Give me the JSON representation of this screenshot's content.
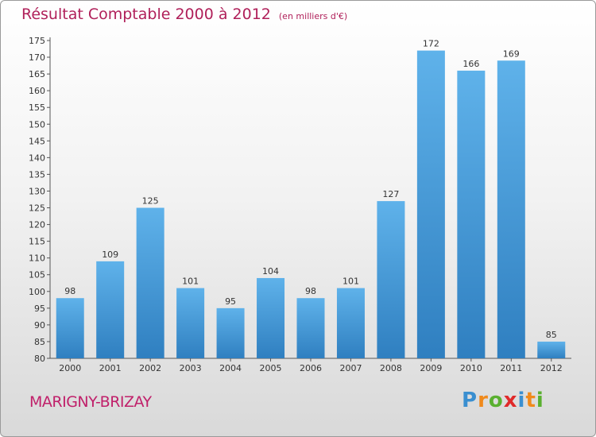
{
  "header": {
    "title": "Résultat Comptable 2000 à 2012",
    "subtitle": "(en milliers d'€)"
  },
  "footer": {
    "commune": "MARIGNY-BRIZAY",
    "logo_letters": [
      {
        "ch": "P",
        "color": "#3a8fd0"
      },
      {
        "ch": "r",
        "color": "#f08a1c"
      },
      {
        "ch": "o",
        "color": "#5ab030"
      },
      {
        "ch": "x",
        "color": "#e02a2a"
      },
      {
        "ch": "i",
        "color": "#3a8fd0"
      },
      {
        "ch": "t",
        "color": "#f08a1c"
      },
      {
        "ch": "i",
        "color": "#5ab030"
      }
    ]
  },
  "chart_data": {
    "type": "bar",
    "title": "Résultat Comptable 2000 à 2012",
    "subtitle": "(en milliers d'€)",
    "xlabel": "",
    "ylabel": "",
    "categories": [
      "2000",
      "2001",
      "2002",
      "2003",
      "2004",
      "2005",
      "2006",
      "2007",
      "2008",
      "2009",
      "2010",
      "2011",
      "2012"
    ],
    "values": [
      98,
      109,
      125,
      101,
      95,
      104,
      98,
      101,
      127,
      172,
      166,
      169,
      85
    ],
    "ylim": [
      80,
      175
    ],
    "ytick_step": 5,
    "grid": false,
    "legend": "none",
    "bar_color_top": "#5fb2ea",
    "bar_color_bottom": "#2f7fc0"
  }
}
